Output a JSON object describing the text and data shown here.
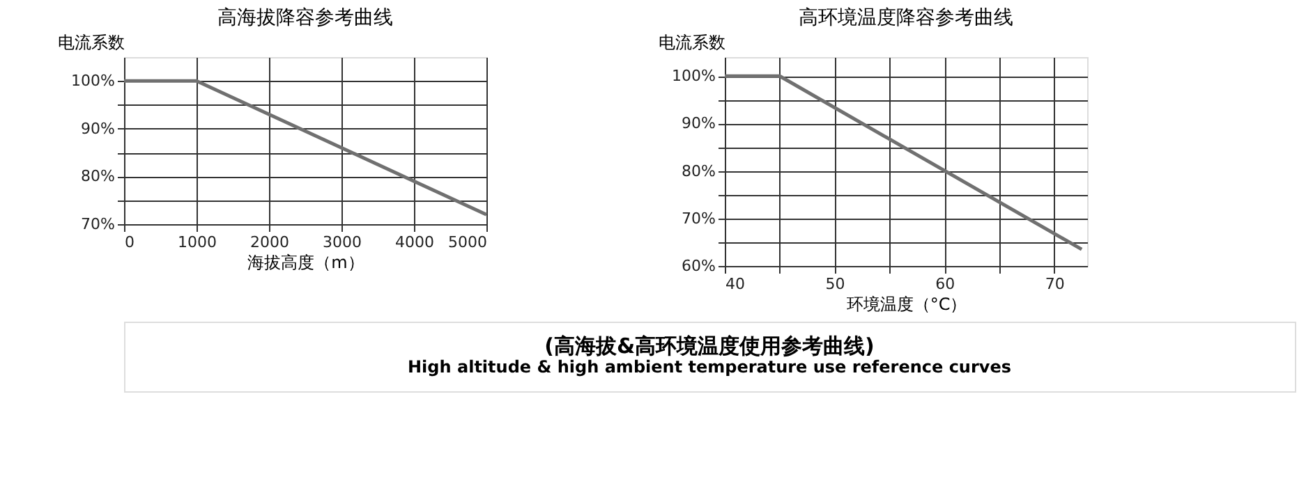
{
  "chart_data": [
    {
      "type": "line",
      "title": "高海拔降容参考曲线",
      "xlabel": "海拔高度（m）",
      "ylabel": "电流系数",
      "x": [
        0,
        1000,
        5000
      ],
      "values": [
        100,
        100,
        72
      ],
      "color": "#707070",
      "xlim": [
        0,
        5000
      ],
      "xticks": [
        0,
        1000,
        2000,
        3000,
        4000,
        5000
      ],
      "ylim": [
        70,
        105
      ],
      "yticks": [
        {
          "value": 70,
          "label": "70%"
        },
        {
          "value": 75,
          "label": null
        },
        {
          "value": 80,
          "label": "80%"
        },
        {
          "value": 85,
          "label": null
        },
        {
          "value": 90,
          "label": "90%"
        },
        {
          "value": 95,
          "label": null
        },
        {
          "value": 100,
          "label": "100%"
        }
      ],
      "grid": true,
      "marker": "none",
      "line_style": "solid",
      "annotations": [
        "(高海拔&高环境温度使用参考曲线)",
        "High altitude & high ambient temperature use reference curves"
      ]
    },
    {
      "type": "line",
      "title": "高环境温度降容参考曲线",
      "xlabel": "环境温度（°C）",
      "ylabel": "电流系数",
      "x": [
        40,
        45,
        72.5
      ],
      "values": [
        100,
        100,
        63.5
      ],
      "color": "#707070",
      "xlim": [
        40,
        73
      ],
      "xticks": [
        40,
        {
          "value": 45,
          "label": null
        },
        50,
        {
          "value": 55,
          "label": null
        },
        60,
        {
          "value": 65,
          "label": null
        },
        70
      ],
      "ylim": [
        60,
        104
      ],
      "yticks": [
        {
          "value": 60,
          "label": "60%"
        },
        {
          "value": 65,
          "label": null
        },
        {
          "value": 70,
          "label": "70%"
        },
        {
          "value": 75,
          "label": null
        },
        {
          "value": 80,
          "label": "80%"
        },
        {
          "value": 85,
          "label": null
        },
        {
          "value": 90,
          "label": "90%"
        },
        {
          "value": 95,
          "label": null
        },
        {
          "value": 100,
          "label": "100%"
        }
      ],
      "grid": true,
      "marker": "none",
      "line_style": "solid"
    }
  ]
}
